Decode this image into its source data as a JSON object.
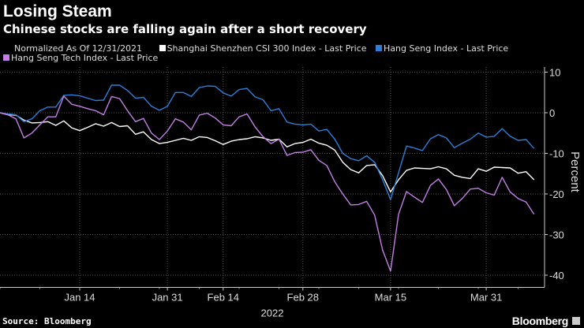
{
  "chart_data": {
    "type": "line",
    "title": "Losing Steam",
    "subtitle": "Chinese stocks are falling again after a short recovery",
    "note": "Normalized As Of 12/31/2021",
    "ylabel": "Percent",
    "xlabel": "2022",
    "ylim": [
      -43,
      10
    ],
    "yticks": [
      10,
      0,
      -10,
      -20,
      -30,
      -40
    ],
    "xticks": [
      {
        "label": "Jan 14",
        "date": "Jan 14"
      },
      {
        "label": "Jan 31",
        "date": "Jan 31"
      },
      {
        "label": "Feb 14",
        "date": "Feb 14"
      },
      {
        "label": "Feb 28",
        "date": "Feb 28"
      },
      {
        "label": "Mar 15",
        "date": "Mar 15"
      },
      {
        "label": "Mar 31",
        "date": "Mar 31"
      }
    ],
    "grid": true,
    "legend_placement": "top",
    "x": [
      "Dec 31",
      "Jan 3",
      "Jan 4",
      "Jan 5",
      "Jan 6",
      "Jan 7",
      "Jan 10",
      "Jan 11",
      "Jan 12",
      "Jan 13",
      "Jan 14",
      "Jan 17",
      "Jan 18",
      "Jan 19",
      "Jan 20",
      "Jan 21",
      "Jan 24",
      "Jan 25",
      "Jan 26",
      "Jan 27",
      "Jan 28",
      "Jan 31",
      "Feb 4",
      "Feb 7",
      "Feb 8",
      "Feb 9",
      "Feb 10",
      "Feb 11",
      "Feb 14",
      "Feb 15",
      "Feb 16",
      "Feb 17",
      "Feb 18",
      "Feb 21",
      "Feb 22",
      "Feb 23",
      "Feb 24",
      "Feb 25",
      "Feb 28",
      "Mar 1",
      "Mar 2",
      "Mar 3",
      "Mar 4",
      "Mar 7",
      "Mar 8",
      "Mar 9",
      "Mar 10",
      "Mar 11",
      "Mar 14",
      "Mar 15",
      "Mar 16",
      "Mar 17",
      "Mar 18",
      "Mar 21",
      "Mar 22",
      "Mar 23",
      "Mar 24",
      "Mar 25",
      "Mar 28",
      "Mar 29",
      "Mar 30",
      "Mar 31",
      "Apr 1",
      "Apr 4",
      "Apr 6",
      "Apr 7",
      "Apr 8",
      "Apr 11"
    ],
    "series": [
      {
        "name": "Shanghai Shenzhen CSI 300 Index - Last Price",
        "color": "#ffffff",
        "values": [
          0,
          -0.5,
          -0.6,
          -1.8,
          -2.5,
          -2.4,
          -2.2,
          -3.1,
          -2.0,
          -3.7,
          -4.4,
          -3.6,
          -2.7,
          -3.3,
          -2.4,
          -3.4,
          -3.2,
          -5.3,
          -4.7,
          -6.6,
          -7.6,
          -7.3,
          -6.8,
          -6.3,
          -6.8,
          -5.9,
          -6.1,
          -6.9,
          -7.8,
          -7.0,
          -6.6,
          -6.4,
          -5.9,
          -6.2,
          -6.8,
          -6.5,
          -8.4,
          -7.6,
          -7.3,
          -6.5,
          -7.5,
          -8.0,
          -9.2,
          -12.2,
          -14.0,
          -14.8,
          -13.0,
          -12.8,
          -15.5,
          -19.5,
          -16.5,
          -14.2,
          -13.6,
          -13.7,
          -13.8,
          -13.3,
          -13.8,
          -15.4,
          -15.9,
          -16.2,
          -13.8,
          -14.4,
          -13.4,
          -13.5,
          -13.6,
          -14.9,
          -14.5,
          -16.5
        ]
      },
      {
        "name": "Hang Seng Index - Last Price",
        "color": "#2b7fd9",
        "values": [
          0,
          -0.3,
          -0.5,
          -2.2,
          -1.5,
          0.5,
          1.4,
          1.4,
          4.3,
          4.4,
          4.2,
          3.6,
          3.0,
          3.1,
          6.8,
          6.8,
          5.5,
          3.6,
          3.8,
          1.6,
          0.6,
          1.6,
          5.0,
          5.0,
          4.0,
          6.2,
          6.6,
          6.5,
          4.9,
          4.1,
          5.7,
          6.0,
          3.9,
          3.2,
          0.5,
          1.0,
          -2.3,
          -2.8,
          -3.0,
          -2.8,
          -4.5,
          -4.1,
          -6.5,
          -10.0,
          -11.3,
          -11.8,
          -10.6,
          -12.2,
          -16.5,
          -21.4,
          -14.8,
          -8.2,
          -8.7,
          -9.3,
          -6.4,
          -5.4,
          -6.2,
          -8.6,
          -7.5,
          -6.5,
          -5.0,
          -6.0,
          -5.8,
          -3.9,
          -5.8,
          -6.8,
          -6.6,
          -8.8
        ]
      },
      {
        "name": "Hang Seng Tech Index - Last Price",
        "color": "#c47fe6",
        "values": [
          0,
          -0.5,
          -1.5,
          -6.2,
          -5.0,
          -3.0,
          -1.0,
          -1.0,
          4.1,
          2.1,
          1.6,
          1.0,
          0.5,
          -0.5,
          4.0,
          3.5,
          0.5,
          -2.2,
          -1.4,
          -5.0,
          -6.6,
          -4.5,
          -1.5,
          -2.3,
          -4.2,
          -0.6,
          -0.1,
          -1.3,
          -3.0,
          -3.2,
          -1.0,
          -0.3,
          -3.5,
          -5.9,
          -7.6,
          -6.5,
          -10.5,
          -9.8,
          -9.7,
          -9.1,
          -11.7,
          -13.0,
          -17.0,
          -20.0,
          -22.7,
          -22.6,
          -21.8,
          -25.2,
          -33.8,
          -39.0,
          -25.0,
          -19.4,
          -20.8,
          -22.1,
          -17.9,
          -16.3,
          -18.9,
          -22.9,
          -21.1,
          -18.8,
          -18.6,
          -19.7,
          -20.3,
          -15.9,
          -19.5,
          -21.1,
          -22.0,
          -25.0
        ]
      }
    ]
  },
  "footer": {
    "source": "Source: Bloomberg",
    "logo": "Bloomberg"
  }
}
